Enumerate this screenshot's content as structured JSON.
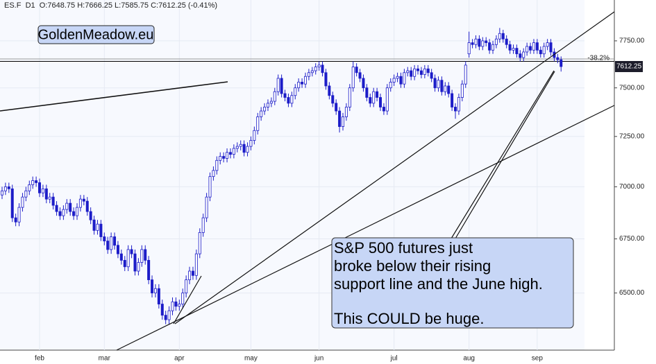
{
  "header": {
    "symbol": "ES.F",
    "timeframe": "D1",
    "open_label": "O:",
    "high_label": "H:",
    "low_label": "L:",
    "close_label": "C:",
    "change": "(-0.41%)"
  },
  "chart_data": {
    "type": "candlestick",
    "log_scale": true,
    "grid": true,
    "color": "#1c1cc8",
    "up_fill": "#ffffff",
    "watermark": "GoldenMeadow.eu",
    "annotation": [
      "S&P 500 futures just",
      "broke below their rising",
      "support line and the June high.",
      "This COULD be huge."
    ],
    "levels": [
      {
        "value": 7653,
        "label": "-38.2%",
        "color": "#9a9a9a"
      },
      {
        "value": 7640,
        "color": "#000000"
      }
    ],
    "ylim": [
      6246,
      7974
    ],
    "yticks": [
      {
        "value": 6500,
        "label": "6500.00"
      },
      {
        "value": 6750,
        "label": "6750.00"
      },
      {
        "value": 7000,
        "label": "7000.00"
      },
      {
        "value": 7250,
        "label": "7250.00"
      },
      {
        "value": 7500,
        "label": "7500.00"
      },
      {
        "value": 7750,
        "label": "7750.00"
      }
    ],
    "categories": [
      null,
      null,
      null,
      null,
      null,
      null,
      null,
      null,
      null,
      null,
      null,
      "feb",
      null,
      null,
      null,
      null,
      null,
      null,
      null,
      null,
      null,
      null,
      null,
      null,
      null,
      null,
      null,
      null,
      null,
      null,
      "mar",
      null,
      null,
      null,
      null,
      null,
      null,
      null,
      null,
      null,
      null,
      null,
      null,
      null,
      null,
      null,
      null,
      null,
      null,
      null,
      null,
      null,
      "apr",
      null,
      null,
      null,
      null,
      null,
      null,
      null,
      null,
      null,
      null,
      null,
      null,
      null,
      null,
      null,
      null,
      null,
      null,
      null,
      null,
      "may",
      null,
      null,
      null,
      null,
      null,
      null,
      null,
      null,
      null,
      null,
      null,
      null,
      null,
      null,
      null,
      null,
      null,
      null,
      null,
      "jun",
      null,
      null,
      null,
      null,
      null,
      null,
      null,
      null,
      null,
      null,
      null,
      null,
      null,
      null,
      null,
      null,
      null,
      null,
      null,
      null,
      null,
      "jul",
      null,
      null,
      null,
      null,
      null,
      null,
      null,
      null,
      null,
      null,
      null,
      null,
      null,
      null,
      null,
      null,
      null,
      null,
      null,
      null,
      null,
      "aug",
      null,
      null,
      null,
      null,
      null,
      null,
      null,
      null,
      null,
      null,
      null,
      null,
      null,
      null,
      null,
      null,
      null,
      null,
      null,
      "sep",
      null,
      null,
      null,
      null,
      null,
      null,
      null
    ],
    "open": [
      6960,
      6980,
      7000,
      6990,
      6850,
      6830,
      6900,
      6950,
      6980,
      7010,
      7030,
      7020,
      6970,
      6990,
      6940,
      6950,
      6910,
      6880,
      6860,
      6890,
      6920,
      6880,
      6860,
      6900,
      6940,
      6930,
      6880,
      6840,
      6790,
      6820,
      6760,
      6740,
      6700,
      6760,
      6720,
      6680,
      6650,
      6620,
      6700,
      6680,
      6600,
      6640,
      6700,
      6650,
      6560,
      6500,
      6520,
      6450,
      6400,
      6380,
      6420,
      6460,
      6440,
      6450,
      6500,
      6560,
      6600,
      6580,
      6680,
      6780,
      6850,
      6950,
      7050,
      7080,
      7130,
      7150,
      7140,
      7170,
      7160,
      7190,
      7200,
      7210,
      7170,
      7200,
      7230,
      7280,
      7350,
      7380,
      7400,
      7420,
      7430,
      7480,
      7550,
      7470,
      7450,
      7420,
      7460,
      7500,
      7530,
      7520,
      7560,
      7580,
      7590,
      7610,
      7620,
      7580,
      7510,
      7460,
      7420,
      7380,
      7300,
      7350,
      7400,
      7500,
      7610,
      7580,
      7550,
      7500,
      7450,
      7420,
      7480,
      7450,
      7400,
      7380,
      7500,
      7530,
      7550,
      7560,
      7520,
      7580,
      7590,
      7560,
      7600,
      7590,
      7570,
      7600,
      7580,
      7550,
      7500,
      7540,
      7480,
      7510,
      7470,
      7400,
      7380,
      7450,
      7520,
      7680,
      7740,
      7730,
      7760,
      7720,
      7750,
      7740,
      7700,
      7730,
      7760,
      7790,
      7760,
      7730,
      7700,
      7710,
      7680,
      7660,
      7690,
      7720,
      7700,
      7740,
      7700,
      7680,
      7720,
      7740,
      7690,
      7660,
      7648.75
    ],
    "high": [
      7000,
      7020,
      7020,
      7010,
      6870,
      6920,
      6970,
      7000,
      7030,
      7050,
      7050,
      7040,
      7010,
      7010,
      6970,
      6970,
      6930,
      6900,
      6910,
      6940,
      6940,
      6900,
      6920,
      6960,
      6960,
      6950,
      6900,
      6860,
      6840,
      6840,
      6780,
      6760,
      6780,
      6780,
      6740,
      6700,
      6670,
      6720,
      6720,
      6700,
      6660,
      6720,
      6720,
      6670,
      6580,
      6540,
      6540,
      6470,
      6420,
      6440,
      6480,
      6480,
      6470,
      6520,
      6580,
      6620,
      6620,
      6700,
      6800,
      6870,
      6970,
      7070,
      7100,
      7150,
      7170,
      7170,
      7190,
      7190,
      7210,
      7220,
      7230,
      7230,
      7220,
      7250,
      7300,
      7370,
      7400,
      7420,
      7440,
      7450,
      7500,
      7570,
      7570,
      7490,
      7470,
      7480,
      7520,
      7550,
      7550,
      7580,
      7600,
      7610,
      7630,
      7640,
      7640,
      7600,
      7530,
      7480,
      7440,
      7400,
      7370,
      7420,
      7520,
      7640,
      7630,
      7600,
      7570,
      7520,
      7470,
      7500,
      7500,
      7470,
      7420,
      7520,
      7550,
      7570,
      7580,
      7580,
      7600,
      7610,
      7610,
      7620,
      7620,
      7610,
      7620,
      7620,
      7600,
      7570,
      7560,
      7560,
      7530,
      7530,
      7490,
      7420,
      7470,
      7540,
      7640,
      7800,
      7760,
      7780,
      7780,
      7770,
      7770,
      7760,
      7750,
      7780,
      7820,
      7810,
      7780,
      7750,
      7730,
      7730,
      7700,
      7710,
      7740,
      7740,
      7760,
      7760,
      7720,
      7740,
      7760,
      7760,
      7710,
      7680,
      7666.25
    ],
    "low": [
      6940,
      6960,
      6970,
      6830,
      6810,
      6810,
      6880,
      6930,
      6960,
      6990,
      7000,
      6950,
      6950,
      6920,
      6920,
      6890,
      6860,
      6840,
      6840,
      6870,
      6860,
      6840,
      6840,
      6880,
      6910,
      6860,
      6820,
      6770,
      6770,
      6740,
      6720,
      6680,
      6680,
      6700,
      6660,
      6630,
      6600,
      6600,
      6660,
      6580,
      6580,
      6620,
      6630,
      6540,
      6480,
      6480,
      6430,
      6380,
      6360,
      6360,
      6400,
      6420,
      6420,
      6430,
      6480,
      6540,
      6560,
      6560,
      6660,
      6760,
      6830,
      6930,
      7030,
      7060,
      7110,
      7120,
      7120,
      7140,
      7140,
      7170,
      7180,
      7150,
      7150,
      7180,
      7210,
      7260,
      7330,
      7360,
      7380,
      7400,
      7410,
      7460,
      7450,
      7430,
      7400,
      7400,
      7440,
      7480,
      7500,
      7500,
      7540,
      7560,
      7570,
      7590,
      7560,
      7490,
      7440,
      7400,
      7360,
      7270,
      7280,
      7330,
      7380,
      7480,
      7560,
      7530,
      7480,
      7430,
      7400,
      7400,
      7430,
      7380,
      7360,
      7360,
      7480,
      7510,
      7530,
      7500,
      7500,
      7560,
      7540,
      7540,
      7570,
      7550,
      7550,
      7560,
      7530,
      7480,
      7480,
      7460,
      7460,
      7450,
      7380,
      7340,
      7360,
      7430,
      7500,
      7660,
      7710,
      7710,
      7700,
      7700,
      7720,
      7680,
      7680,
      7710,
      7740,
      7740,
      7710,
      7680,
      7680,
      7660,
      7640,
      7640,
      7670,
      7680,
      7680,
      7680,
      7660,
      7660,
      7700,
      7670,
      7640,
      7630,
      7585.75
    ],
    "close": [
      6980,
      7000,
      6990,
      6850,
      6830,
      6900,
      6950,
      6980,
      7010,
      7030,
      7020,
      6970,
      6990,
      6940,
      6950,
      6910,
      6880,
      6860,
      6890,
      6920,
      6880,
      6860,
      6900,
      6940,
      6930,
      6880,
      6840,
      6790,
      6820,
      6760,
      6740,
      6700,
      6760,
      6720,
      6680,
      6650,
      6620,
      6700,
      6680,
      6600,
      6640,
      6700,
      6650,
      6560,
      6500,
      6520,
      6450,
      6400,
      6380,
      6420,
      6460,
      6440,
      6450,
      6500,
      6560,
      6600,
      6580,
      6680,
      6780,
      6850,
      6950,
      7050,
      7080,
      7130,
      7150,
      7140,
      7170,
      7160,
      7190,
      7200,
      7210,
      7170,
      7200,
      7230,
      7280,
      7350,
      7380,
      7400,
      7420,
      7430,
      7480,
      7550,
      7470,
      7450,
      7420,
      7460,
      7500,
      7530,
      7520,
      7560,
      7580,
      7590,
      7610,
      7620,
      7580,
      7510,
      7460,
      7420,
      7380,
      7300,
      7350,
      7400,
      7500,
      7610,
      7580,
      7550,
      7500,
      7450,
      7420,
      7480,
      7450,
      7400,
      7380,
      7500,
      7530,
      7550,
      7560,
      7520,
      7580,
      7590,
      7560,
      7600,
      7590,
      7570,
      7600,
      7580,
      7550,
      7500,
      7540,
      7480,
      7510,
      7470,
      7400,
      7380,
      7450,
      7520,
      7620,
      7740,
      7730,
      7760,
      7720,
      7750,
      7740,
      7700,
      7730,
      7760,
      7790,
      7760,
      7730,
      7700,
      7710,
      7680,
      7660,
      7690,
      7720,
      7700,
      7740,
      7700,
      7680,
      7720,
      7740,
      7690,
      7660,
      7648.75,
      7612.25
    ]
  }
}
